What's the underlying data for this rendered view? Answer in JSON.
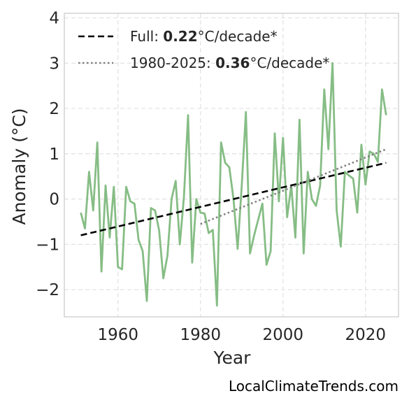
{
  "chart_data": {
    "type": "line",
    "xlabel": "Year",
    "ylabel": "Anomaly (°C)",
    "xlim": [
      1947,
      2028
    ],
    "ylim": [
      -2.6,
      4.1
    ],
    "xticks": [
      1960,
      1980,
      2000,
      2020
    ],
    "yticks": [
      -2,
      -1,
      0,
      1,
      2,
      3,
      4
    ],
    "ytick_labels": [
      "−2",
      "−1",
      "0",
      "1",
      "2",
      "3",
      "4"
    ],
    "grid": true,
    "legend_position": "top-left",
    "series": [
      {
        "x": [
          1951,
          1952,
          1953,
          1954,
          1955,
          1956,
          1957,
          1958,
          1959,
          1960,
          1961,
          1962,
          1963,
          1964,
          1965,
          1966,
          1967,
          1968,
          1969,
          1970,
          1971,
          1972,
          1973,
          1974,
          1975,
          1976,
          1977,
          1978,
          1979,
          1980,
          1981,
          1982,
          1983,
          1984,
          1985,
          1986,
          1987,
          1988,
          1989,
          1990,
          1991,
          1992,
          1993,
          1994,
          1995,
          1996,
          1997,
          1998,
          1999,
          2000,
          2001,
          2002,
          2003,
          2004,
          2005,
          2006,
          2007,
          2008,
          2009,
          2010,
          2011,
          2012,
          2013,
          2014,
          2015,
          2016,
          2017,
          2018,
          2019,
          2020,
          2021,
          2022,
          2023,
          2024,
          2025
        ],
        "values": [
          -0.3,
          -0.65,
          0.6,
          -0.25,
          1.25,
          -1.6,
          0.3,
          -0.85,
          0.27,
          -1.5,
          -1.55,
          0.27,
          -0.05,
          -0.1,
          -0.9,
          -1.15,
          -2.25,
          -0.2,
          -0.25,
          -0.7,
          -1.75,
          -1.25,
          0.0,
          0.4,
          -1.0,
          0.05,
          1.85,
          -1.4,
          0.0,
          -0.3,
          -0.32,
          -0.75,
          -0.68,
          -2.35,
          1.25,
          0.8,
          0.7,
          0.0,
          -1.1,
          0.3,
          1.92,
          -1.2,
          -0.8,
          -0.45,
          -0.1,
          -1.45,
          -1.15,
          1.45,
          -0.05,
          1.35,
          -0.4,
          0.3,
          -0.85,
          1.75,
          -1.2,
          0.6,
          0.0,
          -0.15,
          0.3,
          2.42,
          1.1,
          3.0,
          -0.25,
          -1.05,
          0.6,
          0.52,
          0.45,
          -0.3,
          1.2,
          0.32,
          1.05,
          1.0,
          0.82,
          2.42,
          1.85
        ],
        "color": "#86bd85"
      },
      {
        "name": "Full",
        "label_value": "0.22",
        "label_unit": "°C/decade*",
        "style": "dashed",
        "color": "#000000",
        "x": [
          1951,
          2025
        ],
        "values": [
          -0.8,
          0.8
        ]
      },
      {
        "name": "1980-2025",
        "label_value": "0.36",
        "label_unit": "°C/decade*",
        "style": "dotted",
        "color": "#808080",
        "x": [
          1980,
          2025
        ],
        "values": [
          -0.55,
          1.1
        ]
      }
    ]
  },
  "credit": "LocalClimateTrends.com"
}
